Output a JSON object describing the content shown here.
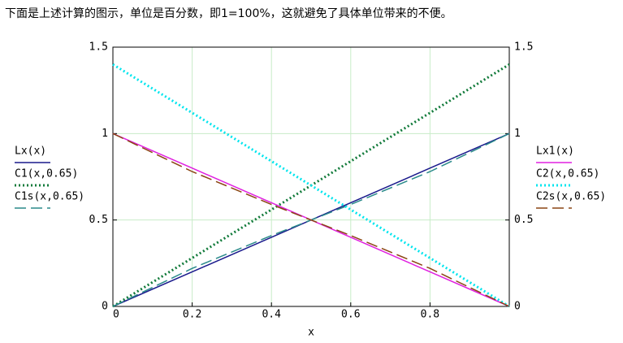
{
  "chart_data": {
    "type": "line",
    "title": "下面是上述计算的图示，单位是百分数，即1=100%，这就避免了具体单位带来的不便。",
    "x_label": "x",
    "x": [
      0,
      0.2,
      0.4,
      0.5,
      0.6,
      0.8,
      1
    ],
    "series": [
      {
        "name": "Lx(x)",
        "color": "#1a1a8c",
        "style": "solid",
        "axis": "y",
        "values": [
          0,
          0.2,
          0.4,
          0.5,
          0.6,
          0.8,
          1
        ]
      },
      {
        "name": "C1(x,0.65)",
        "color": "#117a3a",
        "style": "dotted",
        "axis": "y",
        "values": [
          0,
          0.28,
          0.56,
          0.7,
          0.84,
          1.12,
          1.4
        ]
      },
      {
        "name": "C1s(x,0.65)",
        "color": "#2a8a8a",
        "style": "dashed",
        "axis": "y",
        "values": [
          0,
          0.22,
          0.41,
          0.5,
          0.59,
          0.78,
          1
        ]
      },
      {
        "name": "Lx1(x)",
        "color": "#e020e0",
        "style": "solid",
        "axis": "y2",
        "values": [
          1,
          0.8,
          0.6,
          0.5,
          0.4,
          0.2,
          0
        ]
      },
      {
        "name": "C2(x,0.65)",
        "color": "#00e5ee",
        "style": "dotted",
        "axis": "y2",
        "values": [
          1.4,
          1.12,
          0.84,
          0.7,
          0.56,
          0.28,
          0
        ]
      },
      {
        "name": "C2s(x,0.65)",
        "color": "#8b4513",
        "style": "dashed",
        "axis": "y2",
        "values": [
          1,
          0.78,
          0.59,
          0.5,
          0.41,
          0.22,
          0
        ]
      }
    ],
    "xlim": [
      0,
      1
    ],
    "xticks": [
      0,
      0.2,
      0.4,
      0.6,
      0.8
    ],
    "ylim": [
      0,
      1.5
    ],
    "yticks": [
      0,
      0.5,
      1,
      1.5
    ],
    "y2lim": [
      0,
      1.5
    ],
    "y2ticks": [
      0,
      0.5,
      1,
      1.5
    ],
    "grid": true
  }
}
